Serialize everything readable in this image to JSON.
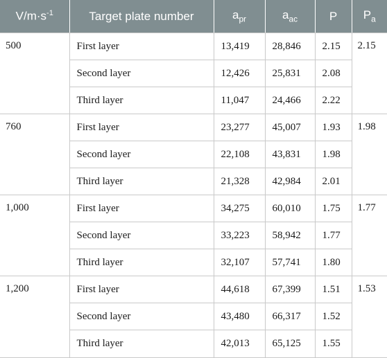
{
  "headers": {
    "velocity": "V/m·s",
    "velocity_sup": "-1",
    "target": "Target plate number",
    "apr_base": "a",
    "apr_sub": "pr",
    "aac_base": "a",
    "aac_sub": "ac",
    "p": "P",
    "pa_base": "P",
    "pa_sub": "a"
  },
  "groups": [
    {
      "velocity": "500",
      "pa": "2.15",
      "rows": [
        {
          "layer": "First layer",
          "apr": "13,419",
          "aac": "28,846",
          "p": "2.15"
        },
        {
          "layer": "Second layer",
          "apr": "12,426",
          "aac": "25,831",
          "p": "2.08"
        },
        {
          "layer": "Third layer",
          "apr": "11,047",
          "aac": "24,466",
          "p": "2.22"
        }
      ]
    },
    {
      "velocity": "760",
      "pa": "1.98",
      "rows": [
        {
          "layer": "First layer",
          "apr": "23,277",
          "aac": "45,007",
          "p": "1.93"
        },
        {
          "layer": "Second layer",
          "apr": "22,108",
          "aac": "43,831",
          "p": "1.98"
        },
        {
          "layer": "Third layer",
          "apr": "21,328",
          "aac": "42,984",
          "p": "2.01"
        }
      ]
    },
    {
      "velocity": "1,000",
      "pa": "1.77",
      "rows": [
        {
          "layer": "First layer",
          "apr": "34,275",
          "aac": "60,010",
          "p": "1.75"
        },
        {
          "layer": "Second layer",
          "apr": "33,223",
          "aac": "58,942",
          "p": "1.77"
        },
        {
          "layer": "Third layer",
          "apr": "32,107",
          "aac": "57,741",
          "p": "1.80"
        }
      ]
    },
    {
      "velocity": "1,200",
      "pa": "1.53",
      "rows": [
        {
          "layer": "First layer",
          "apr": "44,618",
          "aac": "67,399",
          "p": "1.51"
        },
        {
          "layer": "Second layer",
          "apr": "43,480",
          "aac": "66,317",
          "p": "1.52"
        },
        {
          "layer": "Third layer",
          "apr": "42,013",
          "aac": "65,125",
          "p": "1.55"
        }
      ]
    }
  ]
}
